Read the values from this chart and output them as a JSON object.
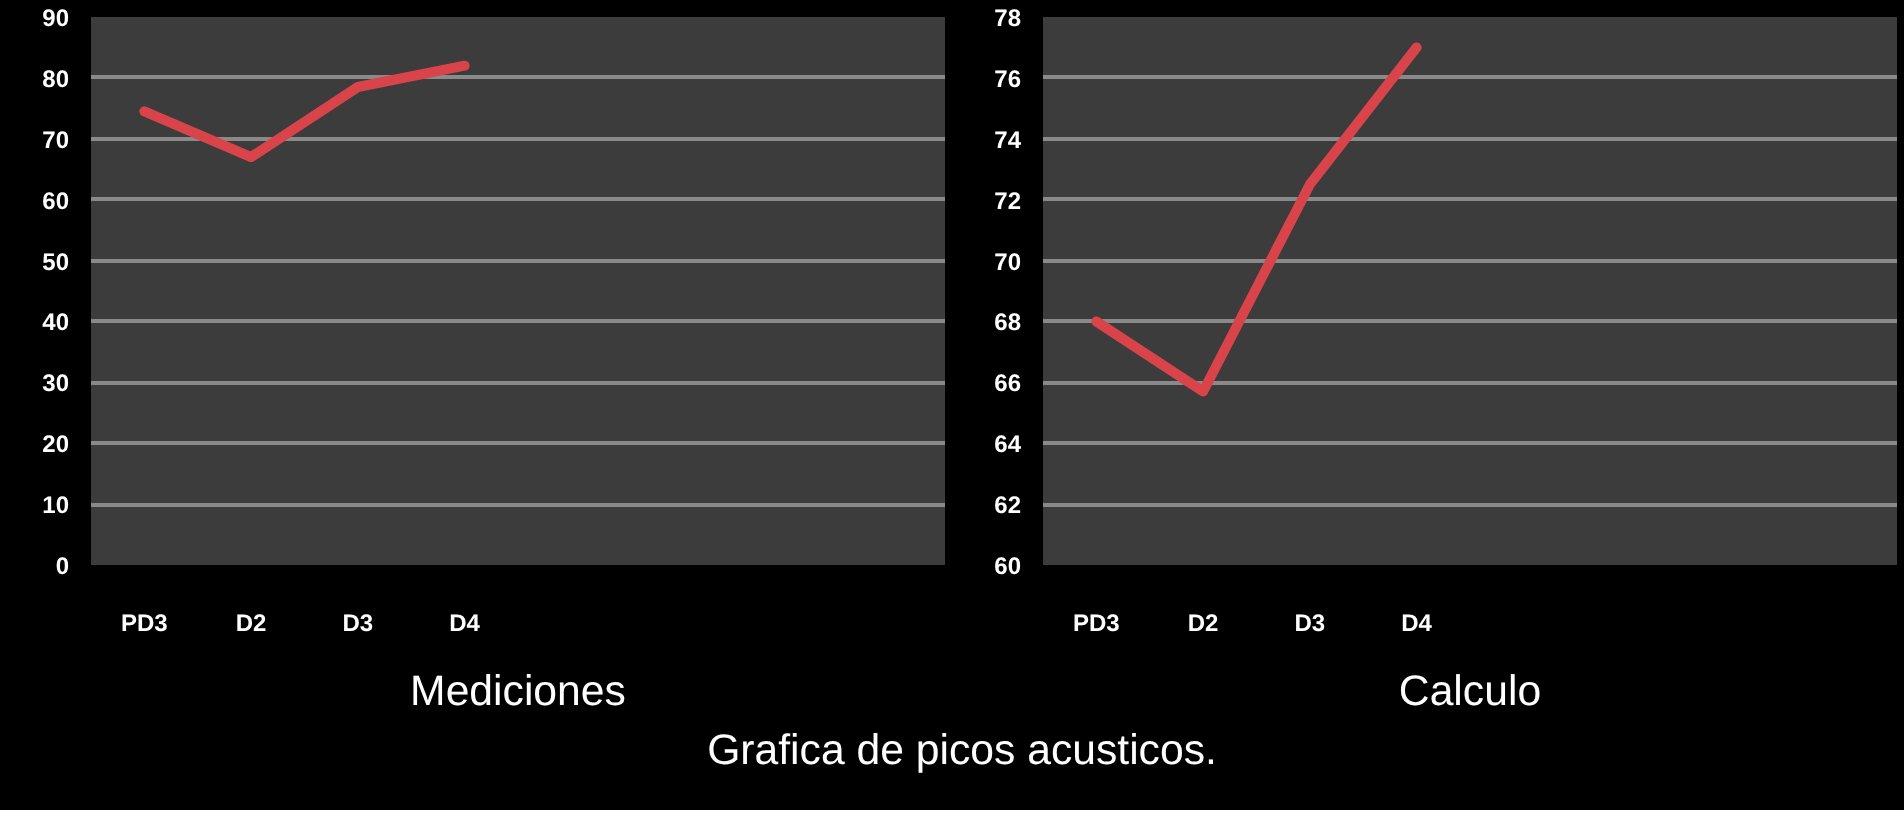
{
  "chart_data": [
    {
      "type": "line",
      "xlabel": "Mediciones",
      "categories": [
        "PD3",
        "D2",
        "D3",
        "D4",
        null,
        null,
        null,
        null
      ],
      "series": [
        {
          "color": "#d9434a",
          "values": [
            74.5,
            67,
            78.5,
            82,
            null,
            null,
            null,
            null
          ]
        }
      ],
      "ylim": [
        0,
        90
      ],
      "yticks": [
        0,
        10,
        20,
        30,
        40,
        50,
        60,
        70,
        80,
        90
      ],
      "grid": "y",
      "annotations": [
        "Grafica de picos acusticos."
      ]
    },
    {
      "type": "line",
      "xlabel": "Calculo",
      "categories": [
        "PD3",
        "D2",
        "D3",
        "D4",
        null,
        null,
        null,
        null
      ],
      "series": [
        {
          "color": "#d9434a",
          "values": [
            68,
            65.7,
            72.5,
            77,
            null,
            null,
            null,
            null
          ]
        }
      ],
      "ylim": [
        60,
        78
      ],
      "yticks": [
        60,
        62,
        64,
        66,
        68,
        70,
        72,
        74,
        76,
        78
      ],
      "grid": "y"
    }
  ]
}
